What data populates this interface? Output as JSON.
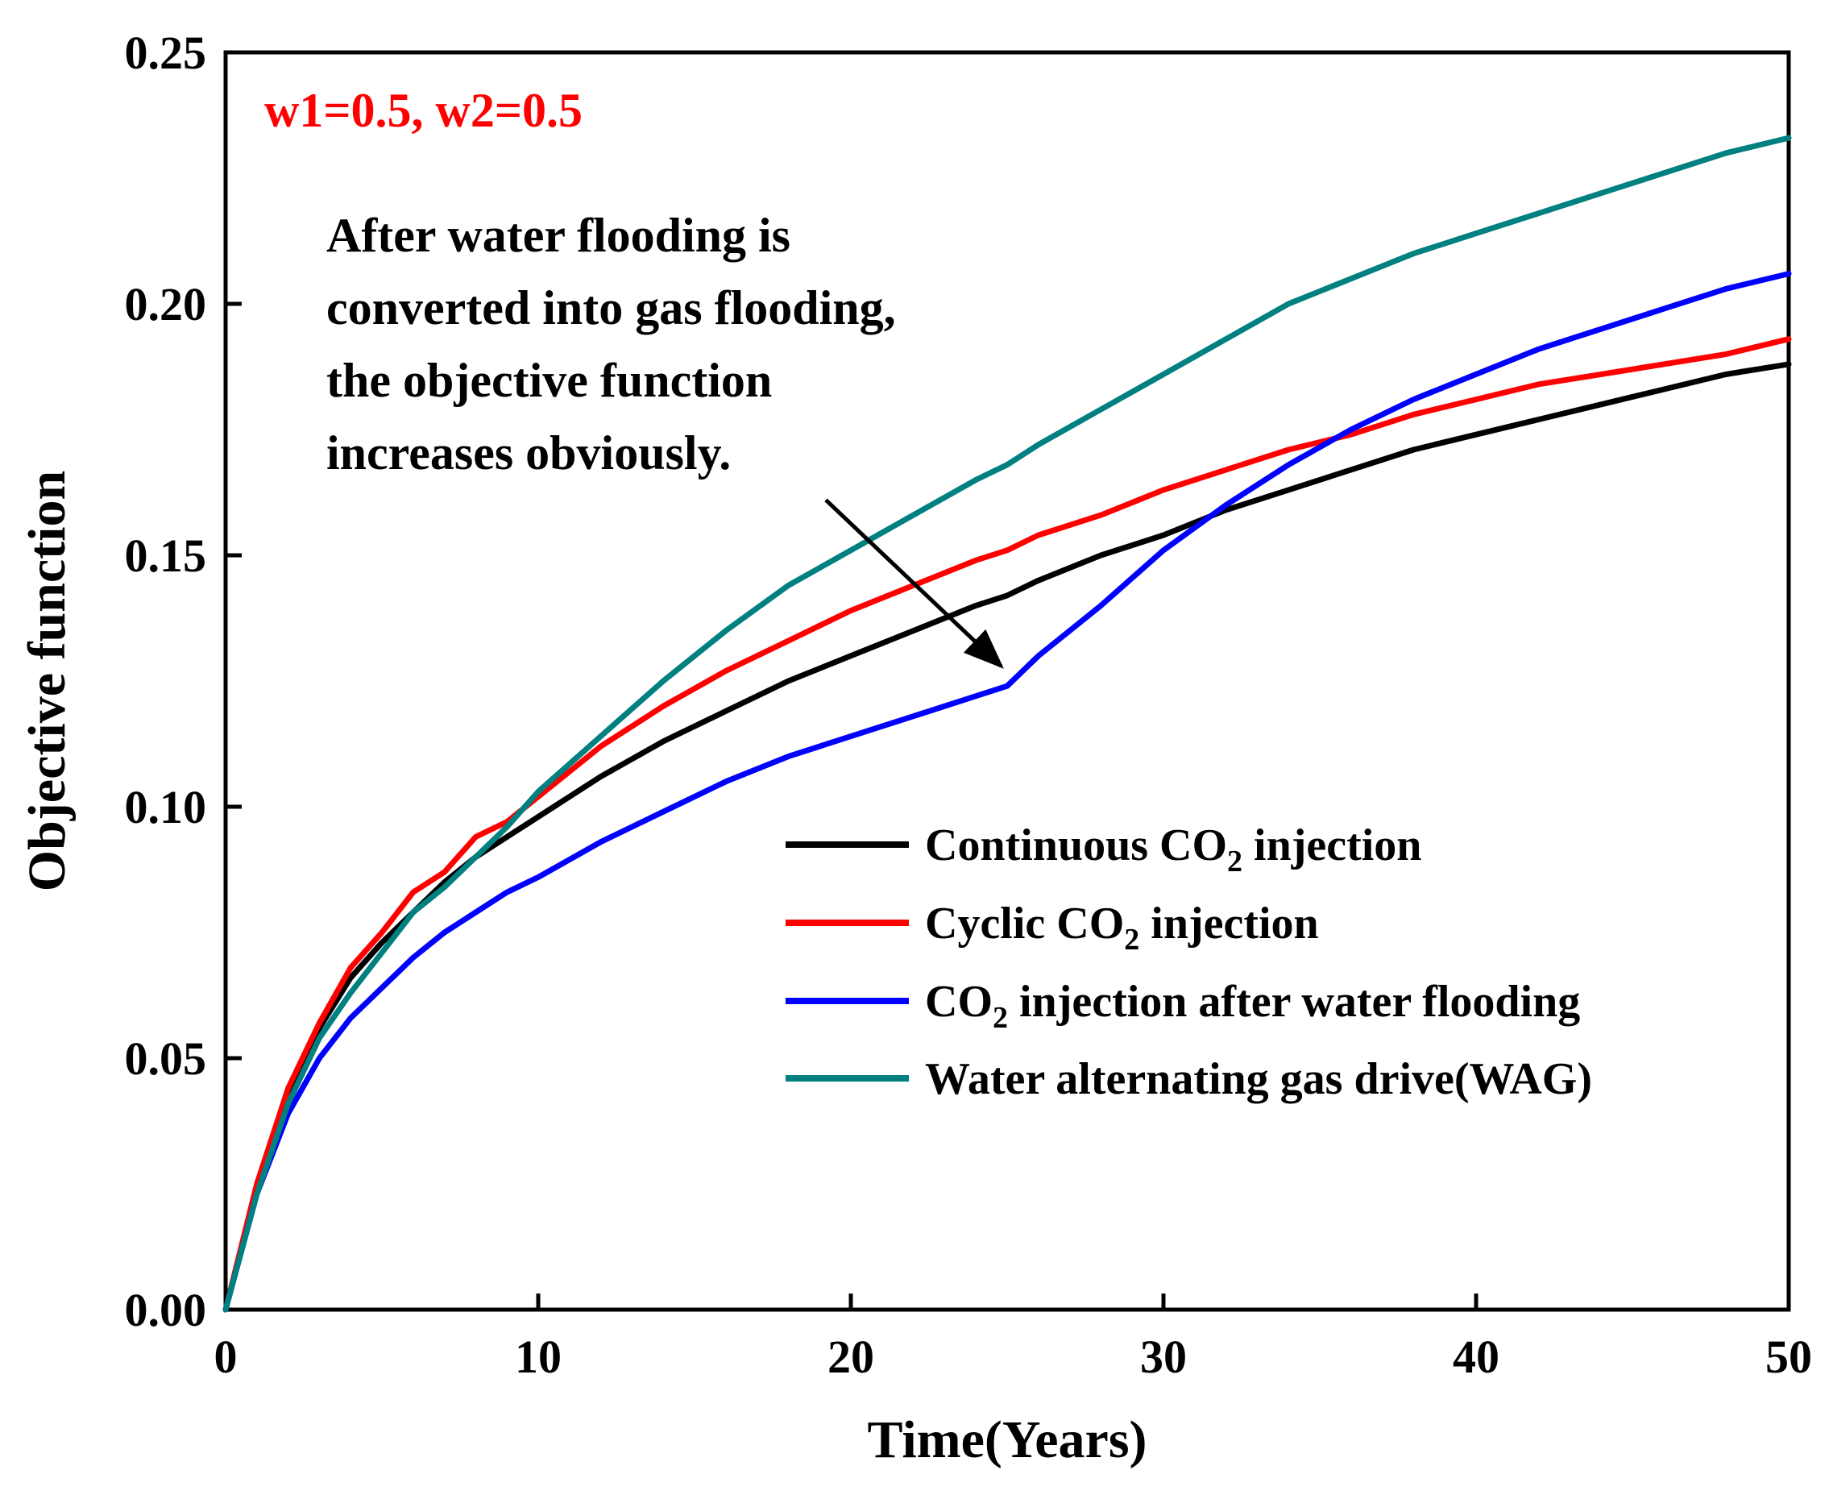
{
  "chart_data": {
    "type": "line",
    "title": "",
    "xlabel": "Time(Years)",
    "ylabel": "Objective function",
    "xlim": [
      0,
      50
    ],
    "ylim": [
      0,
      0.25
    ],
    "x_ticks": [
      0,
      10,
      20,
      30,
      40,
      50
    ],
    "x_tick_labels": [
      "0",
      "10",
      "20",
      "30",
      "40",
      "50"
    ],
    "y_ticks": [
      0,
      0.05,
      0.1,
      0.15,
      0.2,
      0.25
    ],
    "y_tick_labels": [
      "0.00",
      "0.05",
      "0.10",
      "0.15",
      "0.20",
      "0.25"
    ],
    "grid": false,
    "legend_position": "lower-right",
    "weights_text": "w1=0.5, w2=0.5",
    "weights_color": "#ff0000",
    "annotation": {
      "lines": [
        "After water flooding is",
        "converted into gas flooding,",
        "the objective function",
        "increases obviously."
      ],
      "arrow_from": [
        19.2,
        0.161
      ],
      "arrow_to": [
        24.8,
        0.128
      ]
    },
    "x": [
      0,
      1,
      2,
      3,
      4,
      5,
      6,
      7,
      8,
      9,
      10,
      12,
      14,
      16,
      18,
      20,
      22,
      24,
      25,
      26,
      28,
      30,
      32,
      34,
      36,
      38,
      40,
      42,
      44,
      46,
      48,
      50
    ],
    "series": [
      {
        "name": "Continuous CO2 injection",
        "label_parts": [
          "Continuous CO",
          "2",
          " injection"
        ],
        "color": "#000000",
        "values": [
          0,
          0.024,
          0.043,
          0.056,
          0.066,
          0.073,
          0.079,
          0.085,
          0.09,
          0.094,
          0.098,
          0.106,
          0.113,
          0.119,
          0.125,
          0.13,
          0.135,
          0.14,
          0.142,
          0.145,
          0.15,
          0.154,
          0.159,
          0.163,
          0.167,
          0.171,
          0.174,
          0.177,
          0.18,
          0.183,
          0.186,
          0.188
        ]
      },
      {
        "name": "Cyclic CO2 injection",
        "label_parts": [
          "Cyclic CO",
          "2",
          " injection"
        ],
        "color": "#ff0000",
        "values": [
          0,
          0.025,
          0.044,
          0.057,
          0.068,
          0.075,
          0.083,
          0.087,
          0.094,
          0.097,
          0.102,
          0.112,
          0.12,
          0.127,
          0.133,
          0.139,
          0.144,
          0.149,
          0.151,
          0.154,
          0.158,
          0.163,
          0.167,
          0.171,
          0.174,
          0.178,
          0.181,
          0.184,
          0.186,
          0.188,
          0.19,
          0.193
        ]
      },
      {
        "name": "CO2 injection after water flooding",
        "label_parts": [
          "CO",
          "2",
          " injection after water flooding"
        ],
        "color": "#0000ff",
        "values": [
          0,
          0.023,
          0.039,
          0.05,
          0.058,
          0.064,
          0.07,
          0.075,
          0.079,
          0.083,
          0.086,
          0.093,
          0.099,
          0.105,
          0.11,
          0.114,
          0.118,
          0.122,
          0.124,
          0.13,
          0.14,
          0.151,
          0.16,
          0.168,
          0.175,
          0.181,
          0.186,
          0.191,
          0.195,
          0.199,
          0.203,
          0.206
        ]
      },
      {
        "name": "Water alternating gas drive(WAG)",
        "label_parts": [
          "Water alternating gas drive(WAG)",
          "",
          ""
        ],
        "color": "#008080",
        "values": [
          0,
          0.023,
          0.041,
          0.054,
          0.063,
          0.071,
          0.079,
          0.084,
          0.09,
          0.096,
          0.103,
          0.114,
          0.125,
          0.135,
          0.144,
          0.151,
          0.158,
          0.165,
          0.168,
          0.172,
          0.179,
          0.186,
          0.193,
          0.2,
          0.205,
          0.21,
          0.214,
          0.218,
          0.222,
          0.226,
          0.23,
          0.233
        ]
      }
    ]
  }
}
